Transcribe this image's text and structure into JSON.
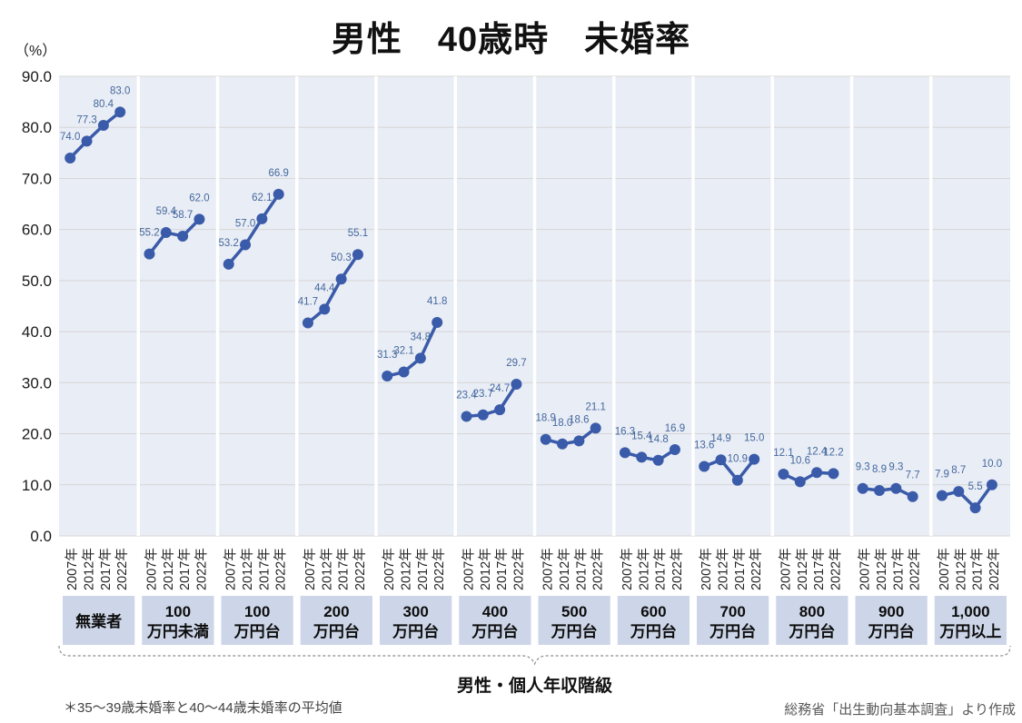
{
  "title": "男性　40歳時　未婚率",
  "unit_label": "（%）",
  "x_axis_group_title": "男性・個人年収階級",
  "footnote": "＊35〜39歳未婚率と40〜44歳未婚率の平均値",
  "source": "総務省「出生動向基本調査」より作成",
  "colors": {
    "series_line": "#3a5ba9",
    "data_label": "#44689e",
    "plot_background": "#e9edf5",
    "gridline": "#d6d6d6",
    "group_separator": "#ffffff",
    "category_box": "#cdd6e8",
    "axis_text": "#262626",
    "brace": "#8c8c8c"
  },
  "chart_data": {
    "type": "line",
    "title": "男性　40歳時　未婚率",
    "ylabel": "（%）",
    "ylim": [
      0,
      90
    ],
    "ytick_step": 10,
    "grid": true,
    "legend": "none",
    "years": [
      "2007年",
      "2012年",
      "2017年",
      "2022年"
    ],
    "groups": [
      {
        "label": [
          "無業者"
        ],
        "values": [
          74.0,
          77.3,
          80.4,
          83.0
        ]
      },
      {
        "label": [
          "100",
          "万円未満"
        ],
        "values": [
          55.2,
          59.4,
          58.7,
          62.0
        ]
      },
      {
        "label": [
          "100",
          "万円台"
        ],
        "values": [
          53.2,
          57.0,
          62.1,
          66.9
        ]
      },
      {
        "label": [
          "200",
          "万円台"
        ],
        "values": [
          41.7,
          44.4,
          50.3,
          55.1
        ]
      },
      {
        "label": [
          "300",
          "万円台"
        ],
        "values": [
          31.3,
          32.1,
          34.8,
          41.8
        ]
      },
      {
        "label": [
          "400",
          "万円台"
        ],
        "values": [
          23.4,
          23.7,
          24.7,
          29.7
        ]
      },
      {
        "label": [
          "500",
          "万円台"
        ],
        "values": [
          18.9,
          18.0,
          18.6,
          21.1
        ]
      },
      {
        "label": [
          "600",
          "万円台"
        ],
        "values": [
          16.3,
          15.4,
          14.8,
          16.9
        ]
      },
      {
        "label": [
          "700",
          "万円台"
        ],
        "values": [
          13.6,
          14.9,
          10.9,
          15.0
        ]
      },
      {
        "label": [
          "800",
          "万円台"
        ],
        "values": [
          12.1,
          10.6,
          12.4,
          12.2
        ]
      },
      {
        "label": [
          "900",
          "万円台"
        ],
        "values": [
          9.3,
          8.9,
          9.3,
          7.7
        ]
      },
      {
        "label": [
          "1,000",
          "万円以上"
        ],
        "values": [
          7.9,
          8.7,
          5.5,
          10.0
        ]
      }
    ]
  }
}
